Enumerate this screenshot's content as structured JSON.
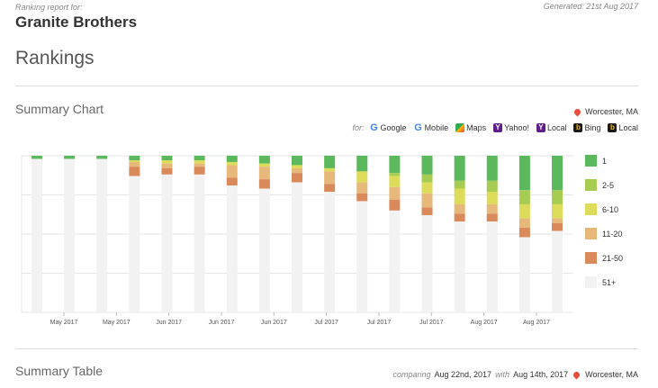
{
  "header": {
    "caption": "Ranking report for:",
    "client": "Granite Brothers",
    "generated": "Generated: 21st Aug 2017"
  },
  "page_title": "Rankings",
  "summary_chart": {
    "title": "Summary Chart",
    "location": "Worcester, MA",
    "filter_prefix": "for:",
    "filters": [
      {
        "label": "Google",
        "icon": "google-icon"
      },
      {
        "label": "Mobile",
        "icon": "google-mobile-icon"
      },
      {
        "label": "Maps",
        "icon": "maps-icon"
      },
      {
        "label": "Yahoo!",
        "icon": "yahoo-icon"
      },
      {
        "label": "Local",
        "icon": "yahoo-local-icon"
      },
      {
        "label": "Bing",
        "icon": "bing-icon"
      },
      {
        "label": "Local",
        "icon": "bing-local-icon"
      }
    ]
  },
  "chart_data": {
    "type": "bar",
    "stacked": true,
    "ylim": [
      0,
      100
    ],
    "grid": true,
    "legend_position": "right",
    "x_tick_labels": [
      "May 2017",
      "May 2017",
      "Jun 2017",
      "Jun 2017",
      "Jun 2017",
      "Jul 2017",
      "Jul 2017",
      "Jul 2017",
      "Aug 2017",
      "Aug 2017"
    ],
    "series": [
      {
        "name": "1",
        "color": "#5cb85c",
        "values": [
          2,
          2,
          2,
          3,
          3,
          3,
          4,
          5,
          6,
          8,
          10,
          11,
          12,
          16,
          16,
          22,
          22
        ]
      },
      {
        "name": "2-5",
        "color": "#a6cc52",
        "values": [
          0,
          0,
          0,
          0,
          0,
          0,
          0,
          0,
          0,
          0,
          0,
          2,
          5,
          5,
          7,
          9,
          9
        ]
      },
      {
        "name": "6-10",
        "color": "#dcdc5a",
        "values": [
          0,
          0,
          0,
          1,
          2,
          2,
          2,
          2,
          2,
          2,
          7,
          7,
          7,
          10,
          8,
          9,
          9
        ]
      },
      {
        "name": "11-20",
        "color": "#e6b97a",
        "values": [
          0,
          0,
          0,
          3,
          3,
          2,
          8,
          8,
          3,
          8,
          7,
          8,
          9,
          6,
          6,
          6,
          3
        ]
      },
      {
        "name": "21-50",
        "color": "#d9895a",
        "values": [
          0,
          0,
          0,
          6,
          4,
          5,
          5,
          6,
          6,
          5,
          5,
          7,
          5,
          5,
          5,
          6,
          5
        ]
      },
      {
        "name": "51+",
        "color": "#f2f2f2",
        "values": [
          98,
          98,
          98,
          87,
          88,
          88,
          81,
          79,
          83,
          77,
          71,
          65,
          62,
          58,
          58,
          48,
          52
        ]
      }
    ]
  },
  "summary_table": {
    "title": "Summary Table",
    "comparing_label": "comparing",
    "date_a": "Aug 22nd, 2017",
    "with_label": "with",
    "date_b": "Aug 14th, 2017",
    "location": "Worcester, MA"
  }
}
